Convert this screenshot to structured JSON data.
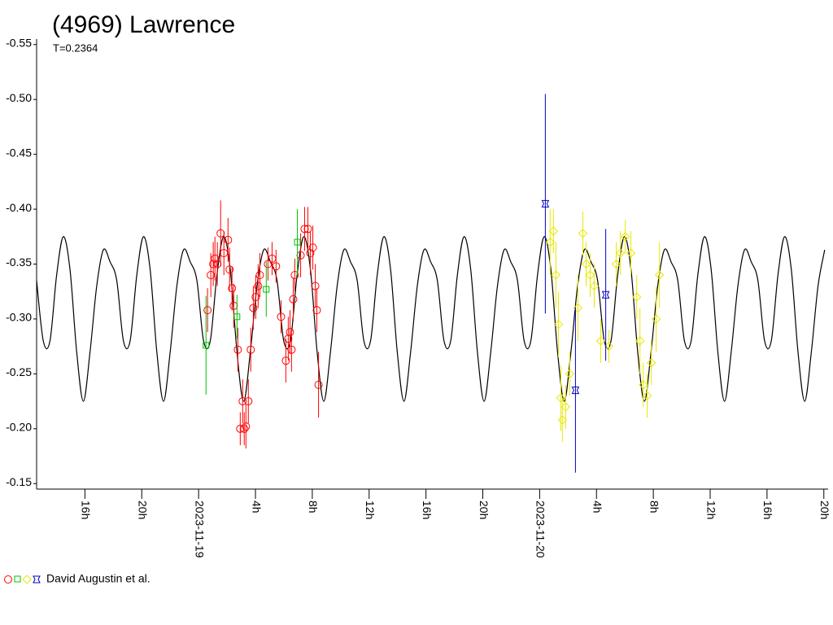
{
  "chart_data": {
    "type": "lightcurve",
    "title": "(4969) Lawrence",
    "subtitle": "T=0.2364",
    "legend": "David Augustin et al.",
    "xlim": [
      -11.4,
      44.3
    ],
    "xticks": [
      {
        "value": -8,
        "label": "16h"
      },
      {
        "value": -4,
        "label": "20h"
      },
      {
        "value": 0,
        "label": "2023-11-19"
      },
      {
        "value": 4,
        "label": "4h"
      },
      {
        "value": 8,
        "label": "8h"
      },
      {
        "value": 12,
        "label": "12h"
      },
      {
        "value": 16,
        "label": "16h"
      },
      {
        "value": 20,
        "label": "20h"
      },
      {
        "value": 24,
        "label": "2023-11-20"
      },
      {
        "value": 28,
        "label": "4h"
      },
      {
        "value": 32,
        "label": "8h"
      },
      {
        "value": 36,
        "label": "12h"
      },
      {
        "value": 40,
        "label": "16h"
      },
      {
        "value": 44,
        "label": "20h"
      }
    ],
    "ylim": [
      -0.555,
      -0.145
    ],
    "y_reversed": true,
    "yticks": [
      -0.55,
      {
        "value": -0.5,
        "label": "-0.50"
      },
      -0.45,
      {
        "value": -0.4,
        "label": "-0.40"
      },
      -0.35,
      {
        "value": -0.3,
        "label": "-0.30"
      },
      -0.25,
      {
        "value": -0.2,
        "label": "-0.20"
      },
      -0.15
    ],
    "curve": {
      "color": "#000000",
      "x": [
        -11.4,
        -10.93,
        -10.46,
        -9.99,
        -9.52,
        -9.05,
        -8.58,
        -8.11,
        -7.64,
        -7.17,
        -6.7,
        -6.23,
        -5.76,
        -5.29,
        -4.82,
        -4.35,
        -3.88,
        -3.41,
        -2.94,
        -2.47,
        -2,
        -1.53,
        -1.06,
        -0.59,
        -0.12,
        0.35,
        0.82,
        1.29,
        1.76,
        2.23,
        2.7,
        3.17,
        3.64,
        4.11,
        4.58,
        5.05,
        5.52,
        5.99,
        6.46,
        6.93,
        7.4,
        7.87,
        8.34,
        8.81,
        9.28,
        9.75,
        10.22,
        10.69,
        11.16,
        11.63,
        12.1,
        12.57,
        13.04,
        13.51,
        13.98,
        14.45,
        14.92,
        15.39,
        15.86,
        16.33,
        16.8,
        17.27,
        17.74,
        18.21,
        18.68,
        19.15,
        19.62,
        20.09,
        20.56,
        21.03,
        21.5,
        21.97,
        22.44,
        22.91,
        23.38,
        23.85,
        24.32,
        24.79,
        25.26,
        25.73,
        26.2,
        26.67,
        27.14,
        27.61,
        28.08,
        28.55,
        29.02,
        29.49,
        29.96,
        30.43,
        30.9,
        31.37,
        31.84,
        32.31,
        32.78,
        33.25,
        33.72,
        34.19,
        34.66,
        35.13,
        35.6,
        36.07,
        36.54,
        37.01,
        37.48,
        37.95,
        38.42,
        38.89,
        39.36,
        39.83,
        40.3,
        40.77,
        41.24,
        41.71,
        42.18,
        42.65,
        43.12,
        43.59,
        44.06
      ],
      "values": [
        -0.335,
        -0.28,
        -0.28,
        -0.34,
        -0.375,
        -0.345,
        -0.27,
        -0.225,
        -0.27,
        -0.33,
        -0.363,
        -0.352,
        -0.335,
        -0.28,
        -0.28,
        -0.34,
        -0.375,
        -0.345,
        -0.27,
        -0.225,
        -0.27,
        -0.33,
        -0.363,
        -0.352,
        -0.335,
        -0.28,
        -0.28,
        -0.34,
        -0.375,
        -0.345,
        -0.27,
        -0.225,
        -0.27,
        -0.33,
        -0.363,
        -0.352,
        -0.335,
        -0.28,
        -0.28,
        -0.34,
        -0.375,
        -0.345,
        -0.27,
        -0.225,
        -0.27,
        -0.33,
        -0.363,
        -0.352,
        -0.335,
        -0.28,
        -0.28,
        -0.34,
        -0.375,
        -0.345,
        -0.27,
        -0.225,
        -0.27,
        -0.33,
        -0.363,
        -0.352,
        -0.335,
        -0.28,
        -0.28,
        -0.34,
        -0.375,
        -0.345,
        -0.27,
        -0.225,
        -0.27,
        -0.33,
        -0.363,
        -0.352,
        -0.335,
        -0.28,
        -0.28,
        -0.34,
        -0.375,
        -0.345,
        -0.27,
        -0.225,
        -0.27,
        -0.33,
        -0.363,
        -0.352,
        -0.335,
        -0.28,
        -0.28,
        -0.34,
        -0.375,
        -0.345,
        -0.27,
        -0.225,
        -0.27,
        -0.33,
        -0.363,
        -0.352,
        -0.335,
        -0.28,
        -0.28,
        -0.34,
        -0.375,
        -0.345,
        -0.27,
        -0.225,
        -0.27,
        -0.33,
        -0.363,
        -0.352,
        -0.335,
        -0.28,
        -0.28,
        -0.34,
        -0.375,
        -0.345,
        -0.27,
        -0.225,
        -0.27,
        -0.33,
        -0.363
      ]
    },
    "series": [
      {
        "symbol": "circle",
        "color": "#ff0000",
        "x": [
          0.63,
          0.86,
          1.03,
          1.15,
          1.32,
          1.55,
          1.78,
          2.07,
          2.18,
          2.35,
          2.47,
          2.76,
          2.93,
          3.1,
          3.21,
          3.33,
          3.5,
          3.67,
          3.85,
          4.02,
          4.19,
          4.31,
          4.88,
          5.17,
          5.45,
          5.8,
          6.14,
          6.31,
          6.43,
          6.54,
          6.66,
          6.77,
          7.18,
          7.46,
          7.69,
          7.86,
          8.04,
          8.21,
          8.32,
          8.44
        ],
        "values": [
          -0.308,
          -0.34,
          -0.35,
          -0.355,
          -0.35,
          -0.378,
          -0.36,
          -0.372,
          -0.345,
          -0.328,
          -0.312,
          -0.272,
          -0.2,
          -0.225,
          -0.2,
          -0.202,
          -0.225,
          -0.272,
          -0.31,
          -0.32,
          -0.33,
          -0.34,
          -0.35,
          -0.355,
          -0.348,
          -0.302,
          -0.262,
          -0.282,
          -0.288,
          -0.272,
          -0.318,
          -0.34,
          -0.358,
          -0.382,
          -0.382,
          -0.36,
          -0.365,
          -0.33,
          -0.308,
          -0.24
        ],
        "errors": [
          0.02,
          0.02,
          0.02,
          0.02,
          0.02,
          0.03,
          0.02,
          0.02,
          0.02,
          0.02,
          0.02,
          0.02,
          0.015,
          0.02,
          0.015,
          0.02,
          0.02,
          0.02,
          0.02,
          0.02,
          0.02,
          0.02,
          0.015,
          0.015,
          0.015,
          0.015,
          0.02,
          0.02,
          0.02,
          0.02,
          0.02,
          0.015,
          0.02,
          0.02,
          0.02,
          0.02,
          0.02,
          0.02,
          0.02,
          0.03
        ]
      },
      {
        "symbol": "square",
        "color": "#00c000",
        "x": [
          0.52,
          2.7,
          4.76,
          6.95
        ],
        "values": [
          -0.276,
          -0.302,
          -0.327,
          -0.37
        ],
        "errors": [
          0.045,
          0.02,
          0.025,
          0.03
        ]
      },
      {
        "symbol": "diamond",
        "color": "#e8e800",
        "x": [
          24.74,
          24.97,
          25.14,
          25.32,
          25.49,
          25.6,
          25.83,
          26.12,
          26.69,
          27.04,
          27.27,
          27.55,
          27.84,
          28.3,
          28.87,
          29.39,
          29.68,
          30.02,
          30.42,
          30.83,
          31.06,
          31.29,
          31.57,
          31.86,
          32.2,
          32.43
        ],
        "values": [
          -0.37,
          -0.38,
          -0.34,
          -0.295,
          -0.228,
          -0.208,
          -0.22,
          -0.25,
          -0.31,
          -0.378,
          -0.35,
          -0.34,
          -0.33,
          -0.28,
          -0.275,
          -0.35,
          -0.36,
          -0.375,
          -0.36,
          -0.32,
          -0.28,
          -0.24,
          -0.23,
          -0.26,
          -0.3,
          -0.34
        ],
        "errors": [
          0.03,
          0.02,
          0.03,
          0.03,
          0.03,
          0.02,
          0.02,
          0.02,
          0.03,
          0.02,
          0.02,
          0.02,
          0.02,
          0.02,
          0.015,
          0.02,
          0.02,
          0.015,
          0.02,
          0.02,
          0.03,
          0.02,
          0.02,
          0.02,
          0.03,
          0.03
        ]
      },
      {
        "symbol": "star",
        "color": "#0000c0",
        "x": [
          24.4,
          26.52,
          28.65
        ],
        "values": [
          -0.405,
          -0.235,
          -0.322
        ],
        "errors": [
          0.1,
          0.075,
          0.06
        ]
      }
    ]
  }
}
